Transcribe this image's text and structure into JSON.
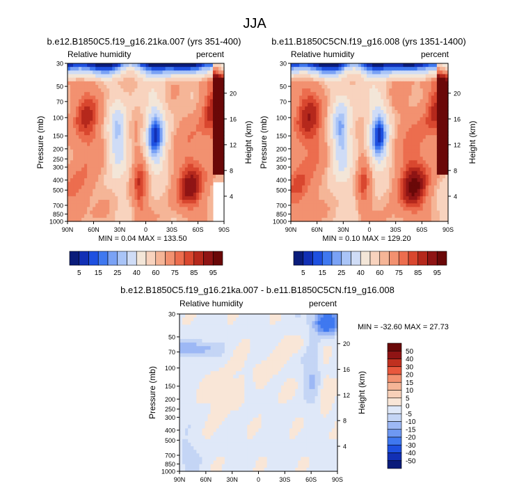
{
  "page": {
    "title": "JJA"
  },
  "colors": {
    "palette": [
      "#0a1c7a",
      "#1230b5",
      "#1e50e0",
      "#3f78f0",
      "#7aa2f5",
      "#a9c4f7",
      "#cfdcf6",
      "#f3e6d8",
      "#f8d3be",
      "#f5b597",
      "#f29170",
      "#ec6d4e",
      "#d9472f",
      "#b5281c",
      "#8f1414",
      "#6a0808"
    ]
  },
  "axes_shared": {
    "pressure_label": "Pressure (mb)",
    "height_label": "Height (km)",
    "left_string": "Relative humidity",
    "right_string": "percent",
    "pressure_ticks": [
      "30",
      "50",
      "70",
      "100",
      "150",
      "200",
      "250",
      "300",
      "400",
      "500",
      "700",
      "850",
      "1000"
    ],
    "height_ticks": [
      "20",
      "16",
      "12",
      "8",
      "4"
    ],
    "lat_ticks": [
      "90N",
      "60N",
      "30N",
      "0",
      "30S",
      "60S",
      "90S"
    ]
  },
  "chart_data": [
    {
      "type": "heatmap",
      "title": "b.e12.B1850C5.f19_g16.21ka.007 (yrs 351-400)",
      "stats": "MIN =   0.04   MAX = 133.50",
      "colorbar_labels": [
        "5",
        "15",
        "25",
        "40",
        "60",
        "75",
        "85",
        "95"
      ],
      "xlabel": "",
      "ylabel": "Pressure (mb)",
      "ylim": [
        1000,
        30
      ]
    },
    {
      "type": "heatmap",
      "title": "b.e11.B1850C5CN.f19_g16.008 (yrs 1351-1400)",
      "stats": "MIN =   0.10   MAX = 129.20",
      "colorbar_labels": [
        "5",
        "15",
        "25",
        "40",
        "60",
        "75",
        "85",
        "95"
      ],
      "xlabel": "",
      "ylabel": "Pressure (mb)",
      "ylim": [
        1000,
        30
      ]
    },
    {
      "type": "heatmap",
      "title": "b.e12.B1850C5.f19_g16.21ka.007 - b.e11.B1850C5CN.f19_g16.008",
      "stats": "MIN = -32.60   MAX =  27.73",
      "colorbar_labels": [
        "50",
        "40",
        "30",
        "20",
        "15",
        "10",
        "5",
        "0",
        "-5",
        "-10",
        "-15",
        "-20",
        "-30",
        "-40",
        "-50"
      ],
      "xlabel": "",
      "ylabel": "Pressure (mb)",
      "ylim": [
        1000,
        30
      ]
    }
  ]
}
